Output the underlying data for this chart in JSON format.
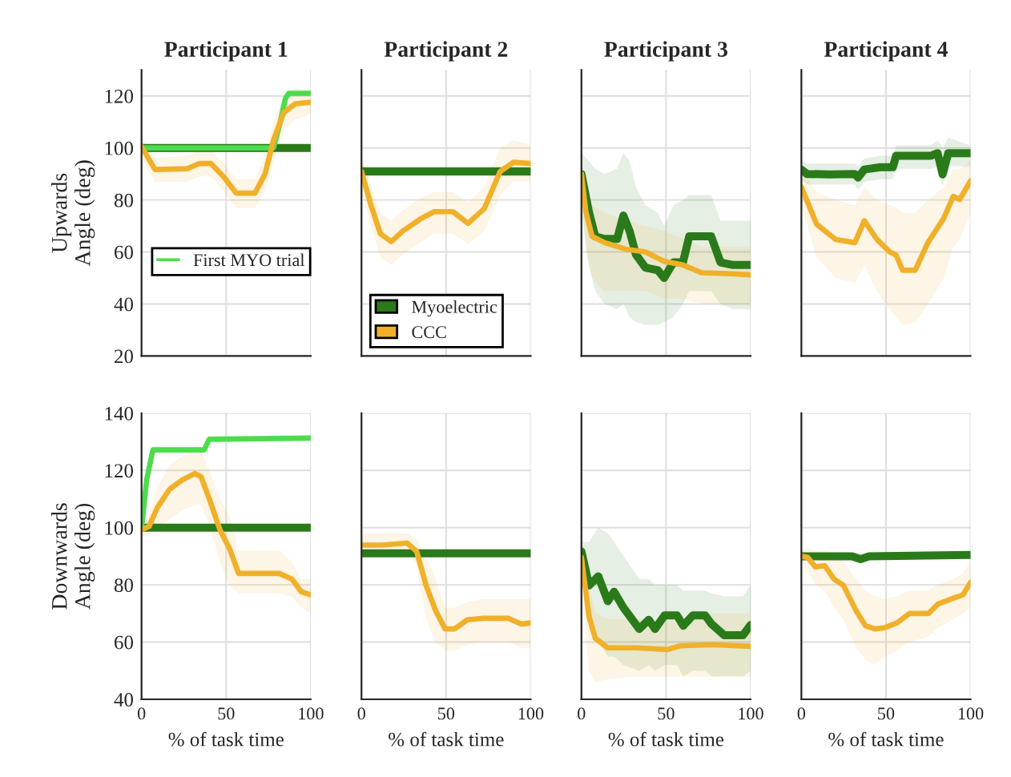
{
  "chart_data": [
    {
      "type": "line",
      "title": "Participant 1",
      "ylabel": "Upwards\nAngle (deg)",
      "xlim": [
        0,
        100
      ],
      "xticks": [
        {
          "value": 0,
          "label": null
        },
        {
          "value": 50,
          "label": null
        },
        {
          "value": 100,
          "label": null
        }
      ],
      "ylim": [
        20,
        130
      ],
      "yticks": [
        20,
        40,
        60,
        80,
        100,
        120
      ],
      "grid": true,
      "tick_labels": "y",
      "legend": "left",
      "series": [
        {
          "color": "#2a7a1a",
          "x": [
            0,
            100
          ],
          "values": [
            100,
            100
          ]
        },
        {
          "name": "First MYO trial",
          "color": "#4ddc4d",
          "x": [
            0,
            78,
            82,
            85,
            87,
            100
          ],
          "values": [
            100,
            100,
            110,
            119,
            121,
            121
          ]
        },
        {
          "color": "#f0b02a",
          "x": [
            0,
            8,
            27,
            34,
            41,
            49,
            56,
            67,
            73,
            78,
            84,
            91,
            100
          ],
          "values": [
            100.5,
            91.7,
            92,
            94,
            94,
            88.6,
            82.6,
            82.6,
            90,
            103,
            113.6,
            117,
            117.6
          ],
          "lower": [
            96,
            87,
            87,
            89,
            89,
            83,
            77,
            77,
            83,
            95,
            107,
            111,
            113
          ],
          "upper": [
            104,
            96,
            97,
            99,
            99,
            94,
            88,
            88,
            97,
            110,
            120,
            123,
            122
          ]
        }
      ]
    },
    {
      "type": "line",
      "title": "Participant 2",
      "xlim": [
        0,
        100
      ],
      "xticks": [
        {
          "value": 0,
          "label": null
        },
        {
          "value": 50,
          "label": null
        },
        {
          "value": 100,
          "label": null
        }
      ],
      "ylim": [
        20,
        130
      ],
      "yticks": [
        {
          "value": 20,
          "label": null
        },
        {
          "value": 40,
          "label": null
        },
        {
          "value": 60,
          "label": null
        },
        {
          "value": 80,
          "label": null
        },
        {
          "value": 100,
          "label": null
        },
        {
          "value": 120,
          "label": null
        }
      ],
      "grid": true,
      "tick_labels": false,
      "legend": "bottom left",
      "series": [
        {
          "name": "Myoelectric",
          "color": "#2a7a1a",
          "x": [
            0,
            100
          ],
          "values": [
            91,
            91
          ],
          "lower": [
            89,
            89
          ],
          "upper": [
            93,
            93
          ]
        },
        {
          "name": "CCC",
          "color": "#f0b02a",
          "x": [
            0,
            5.6,
            11.2,
            17.6,
            24.3,
            35.6,
            43,
            54,
            63,
            72.6,
            82,
            89.9,
            100
          ],
          "values": [
            91,
            78,
            67,
            64,
            68,
            73,
            75.5,
            75.5,
            71,
            76.7,
            91,
            94.5,
            94
          ],
          "lower": [
            84,
            70,
            58,
            55,
            59,
            64,
            67,
            67,
            63,
            68,
            82,
            87,
            87
          ],
          "upper": [
            97,
            86,
            75,
            72,
            76,
            81,
            83,
            83,
            79,
            85,
            100,
            103,
            101
          ]
        }
      ]
    },
    {
      "type": "line",
      "title": "Participant 3",
      "xlim": [
        0,
        100
      ],
      "xticks": [
        {
          "value": 0,
          "label": null
        },
        {
          "value": 50,
          "label": null
        },
        {
          "value": 100,
          "label": null
        }
      ],
      "ylim": [
        20,
        130
      ],
      "yticks": [
        {
          "value": 20,
          "label": null
        },
        {
          "value": 40,
          "label": null
        },
        {
          "value": 60,
          "label": null
        },
        {
          "value": 80,
          "label": null
        },
        {
          "value": 100,
          "label": null
        },
        {
          "value": 120,
          "label": null
        }
      ],
      "grid": true,
      "tick_labels": false,
      "series": [
        {
          "color": "#2a7a1a",
          "x": [
            0,
            4.4,
            8.1,
            13.7,
            21.1,
            24.8,
            28.5,
            32.2,
            37.8,
            45.2,
            48.9,
            54.4,
            60,
            63.7,
            69.3,
            76.7,
            82.2,
            89.6,
            100
          ],
          "values": [
            90,
            75.5,
            66,
            65,
            65,
            74,
            68,
            59,
            54,
            53,
            50,
            56,
            56,
            66,
            66,
            66,
            56,
            55,
            55
          ],
          "lower": [
            75,
            55,
            45,
            40,
            38,
            40,
            35,
            33,
            32,
            32,
            33,
            35,
            40,
            45,
            45,
            45,
            40,
            38,
            38
          ],
          "upper": [
            98,
            95,
            92,
            90,
            92,
            98,
            95,
            85,
            78,
            75,
            70,
            78,
            80,
            82,
            82,
            82,
            72,
            72,
            72
          ]
        },
        {
          "color": "#f0b02a",
          "x": [
            0,
            2.6,
            6.3,
            13.7,
            26.7,
            37.8,
            48.9,
            60,
            71.1,
            85.9,
            100
          ],
          "values": [
            90,
            75.5,
            66,
            63.6,
            61,
            60,
            56.4,
            55,
            52,
            51.7,
            51.2
          ],
          "lower": [
            85,
            60,
            50,
            45,
            45,
            45,
            42,
            42,
            40,
            40,
            40
          ],
          "upper": [
            95,
            85,
            78,
            75,
            72,
            70,
            68,
            65,
            62,
            62,
            62
          ]
        }
      ]
    },
    {
      "type": "line",
      "title": "Participant 4",
      "xlim": [
        0,
        100
      ],
      "xticks": [
        {
          "value": 0,
          "label": null
        },
        {
          "value": 50,
          "label": null
        },
        {
          "value": 100,
          "label": null
        }
      ],
      "ylim": [
        20,
        130
      ],
      "yticks": [
        {
          "value": 20,
          "label": null
        },
        {
          "value": 40,
          "label": null
        },
        {
          "value": 60,
          "label": null
        },
        {
          "value": 80,
          "label": null
        },
        {
          "value": 100,
          "label": null
        },
        {
          "value": 120,
          "label": null
        }
      ],
      "grid": true,
      "tick_labels": false,
      "series": [
        {
          "color": "#2a7a1a",
          "x": [
            0,
            3.4,
            16.5,
            31.6,
            33.5,
            37.2,
            46.6,
            54.1,
            56,
            76.7,
            80.5,
            83.5,
            86.8,
            100
          ],
          "values": [
            91.7,
            90,
            89.8,
            90,
            88.6,
            91.7,
            92.6,
            92.6,
            97,
            97,
            98,
            89.8,
            98,
            98
          ],
          "lower": [
            88,
            86,
            86,
            86,
            84,
            87,
            88,
            88,
            92,
            92,
            93,
            85,
            93,
            93
          ],
          "upper": [
            95,
            94,
            94,
            94,
            93,
            96,
            97,
            97,
            101,
            101,
            103,
            100,
            104,
            101
          ]
        },
        {
          "color": "#f0b02a",
          "x": [
            0,
            9,
            20.3,
            31.6,
            37.2,
            44.7,
            52.3,
            56,
            59.8,
            67.3,
            74.8,
            84.2,
            89.8,
            93.6,
            100
          ],
          "values": [
            85,
            70.7,
            64.8,
            63.6,
            72,
            64.8,
            60,
            58.8,
            53,
            53,
            63.6,
            73,
            81.4,
            80.2,
            87.4
          ],
          "lower": [
            78,
            58,
            50,
            48,
            55,
            45,
            38,
            35,
            32,
            33,
            40,
            50,
            62,
            65,
            75
          ],
          "upper": [
            92,
            83,
            80,
            78,
            85,
            80,
            78,
            77,
            75,
            75,
            80,
            85,
            92,
            92,
            95
          ]
        }
      ]
    },
    {
      "type": "line",
      "ylabel": "Downwards\nAngle (deg)",
      "xlabel": "% of task time",
      "xlim": [
        0,
        100
      ],
      "xticks": [
        0,
        50,
        100
      ],
      "ylim": [
        40,
        140
      ],
      "yticks": [
        40,
        60,
        80,
        100,
        120,
        140
      ],
      "grid": true,
      "series": [
        {
          "color": "#2a7a1a",
          "x": [
            0,
            100
          ],
          "values": [
            100,
            100
          ]
        },
        {
          "color": "#4ddc4d",
          "x": [
            0,
            3,
            6.7,
            37,
            40,
            100
          ],
          "values": [
            99.8,
            116.7,
            127.2,
            127.2,
            130.9,
            131.3
          ]
        },
        {
          "color": "#f0b02a",
          "x": [
            0,
            4.4,
            9.3,
            16.7,
            24.1,
            31.5,
            35.2,
            40.7,
            46.3,
            51.9,
            57.4,
            66.7,
            81.5,
            88.9,
            94.4,
            100
          ],
          "values": [
            99.3,
            100.4,
            107,
            113.5,
            116.7,
            118.9,
            117.8,
            109,
            99.3,
            92.8,
            84,
            84,
            84,
            82,
            77.6,
            76.5
          ],
          "lower": [
            97,
            97,
            100,
            103,
            106,
            108,
            108,
            100,
            88,
            80,
            77,
            77,
            77,
            76,
            72,
            70
          ],
          "upper": [
            101,
            104,
            114,
            122,
            125,
            127,
            127,
            119,
            110,
            104,
            92,
            92,
            92,
            88,
            82,
            82
          ]
        }
      ]
    },
    {
      "type": "line",
      "xlabel": "% of task time",
      "xlim": [
        0,
        100
      ],
      "xticks": [
        0,
        50,
        100
      ],
      "ylim": [
        40,
        140
      ],
      "yticks": [
        {
          "value": 40,
          "label": null
        },
        {
          "value": 60,
          "label": null
        },
        {
          "value": 80,
          "label": null
        },
        {
          "value": 100,
          "label": null
        },
        {
          "value": 120,
          "label": null
        },
        {
          "value": 140,
          "label": null
        }
      ],
      "grid": true,
      "tick_labels": "x",
      "series": [
        {
          "color": "#2a7a1a",
          "x": [
            0,
            100
          ],
          "values": [
            91,
            91
          ]
        },
        {
          "color": "#f0b02a",
          "x": [
            0,
            12,
            27,
            32.6,
            38.2,
            43.8,
            49.4,
            55,
            62.5,
            71.9,
            86.9,
            94.4,
            100
          ],
          "values": [
            93.9,
            93.9,
            94.6,
            91.7,
            79.8,
            71,
            64.6,
            64.6,
            67.8,
            68.3,
            68.3,
            66.3,
            66.7
          ],
          "lower": [
            90,
            90,
            91,
            87,
            68,
            60,
            57,
            57,
            59,
            60,
            60,
            58,
            58
          ],
          "upper": [
            98,
            98,
            98,
            96,
            90,
            82,
            72,
            72,
            74,
            75,
            75,
            75,
            75
          ]
        }
      ]
    },
    {
      "type": "line",
      "xlabel": "% of task time",
      "xlim": [
        0,
        100
      ],
      "xticks": [
        0,
        50,
        100
      ],
      "ylim": [
        40,
        140
      ],
      "yticks": [
        {
          "value": 40,
          "label": null
        },
        {
          "value": 60,
          "label": null
        },
        {
          "value": 80,
          "label": null
        },
        {
          "value": 100,
          "label": null
        },
        {
          "value": 120,
          "label": null
        },
        {
          "value": 140,
          "label": null
        }
      ],
      "grid": true,
      "tick_labels": "x",
      "series": [
        {
          "color": "#2a7a1a",
          "x": [
            0,
            4.5,
            10,
            15.6,
            19.3,
            24.9,
            34.2,
            39.8,
            43.5,
            49.1,
            56.5,
            60.2,
            65.8,
            73.2,
            76.9,
            84.4,
            95.5,
            100
          ],
          "values": [
            91.7,
            79.8,
            83,
            74.3,
            77.6,
            72,
            64.6,
            67.8,
            64.6,
            69.3,
            69.3,
            65.7,
            69.3,
            69.3,
            66.3,
            62.4,
            62.4,
            66
          ],
          "lower": [
            85,
            65,
            60,
            55,
            55,
            52,
            50,
            52,
            50,
            52,
            52,
            48,
            50,
            50,
            48,
            48,
            48,
            50
          ],
          "upper": [
            95,
            95,
            100,
            98,
            95,
            90,
            82,
            82,
            80,
            80,
            80,
            78,
            78,
            78,
            77,
            76,
            76,
            80
          ]
        },
        {
          "color": "#f0b02a",
          "x": [
            0,
            4.5,
            8.2,
            15.6,
            32.3,
            50.9,
            58.4,
            77,
            100
          ],
          "values": [
            89.6,
            68.9,
            61.3,
            58,
            58,
            57.4,
            58.7,
            59.1,
            58.5
          ],
          "lower": [
            80,
            50,
            46,
            47,
            48,
            48,
            48,
            48,
            48
          ],
          "upper": [
            95,
            80,
            70,
            68,
            68,
            67,
            68,
            70,
            70
          ]
        }
      ]
    },
    {
      "type": "line",
      "xlabel": "% of task time",
      "xlim": [
        0,
        100
      ],
      "xticks": [
        0,
        50,
        100
      ],
      "ylim": [
        40,
        140
      ],
      "yticks": [
        {
          "value": 40,
          "label": null
        },
        {
          "value": 60,
          "label": null
        },
        {
          "value": 80,
          "label": null
        },
        {
          "value": 100,
          "label": null
        },
        {
          "value": 120,
          "label": null
        },
        {
          "value": 140,
          "label": null
        }
      ],
      "grid": true,
      "tick_labels": "x",
      "series": [
        {
          "color": "#2a7a1a",
          "x": [
            0,
            30,
            35,
            40,
            100
          ],
          "values": [
            90,
            90,
            89,
            90,
            90.5
          ]
        },
        {
          "color": "#f0b02a",
          "x": [
            0,
            3.7,
            8.2,
            13.8,
            19.3,
            24.9,
            32.3,
            37.9,
            43.5,
            49.1,
            56.5,
            63.9,
            75.1,
            80.7,
            90,
            95.5,
            100
          ],
          "values": [
            90,
            89.6,
            86.3,
            86.7,
            82,
            79.8,
            71,
            65.7,
            64.6,
            65,
            66.7,
            70,
            70,
            73.3,
            75.4,
            76.5,
            80.9
          ],
          "lower": [
            88,
            85,
            80,
            78,
            72,
            68,
            58,
            54,
            52,
            55,
            57,
            60,
            62,
            65,
            68,
            70,
            72
          ],
          "upper": [
            92,
            93,
            92,
            92,
            90,
            88,
            82,
            78,
            76,
            75,
            76,
            78,
            78,
            80,
            82,
            84,
            88
          ]
        }
      ]
    }
  ]
}
